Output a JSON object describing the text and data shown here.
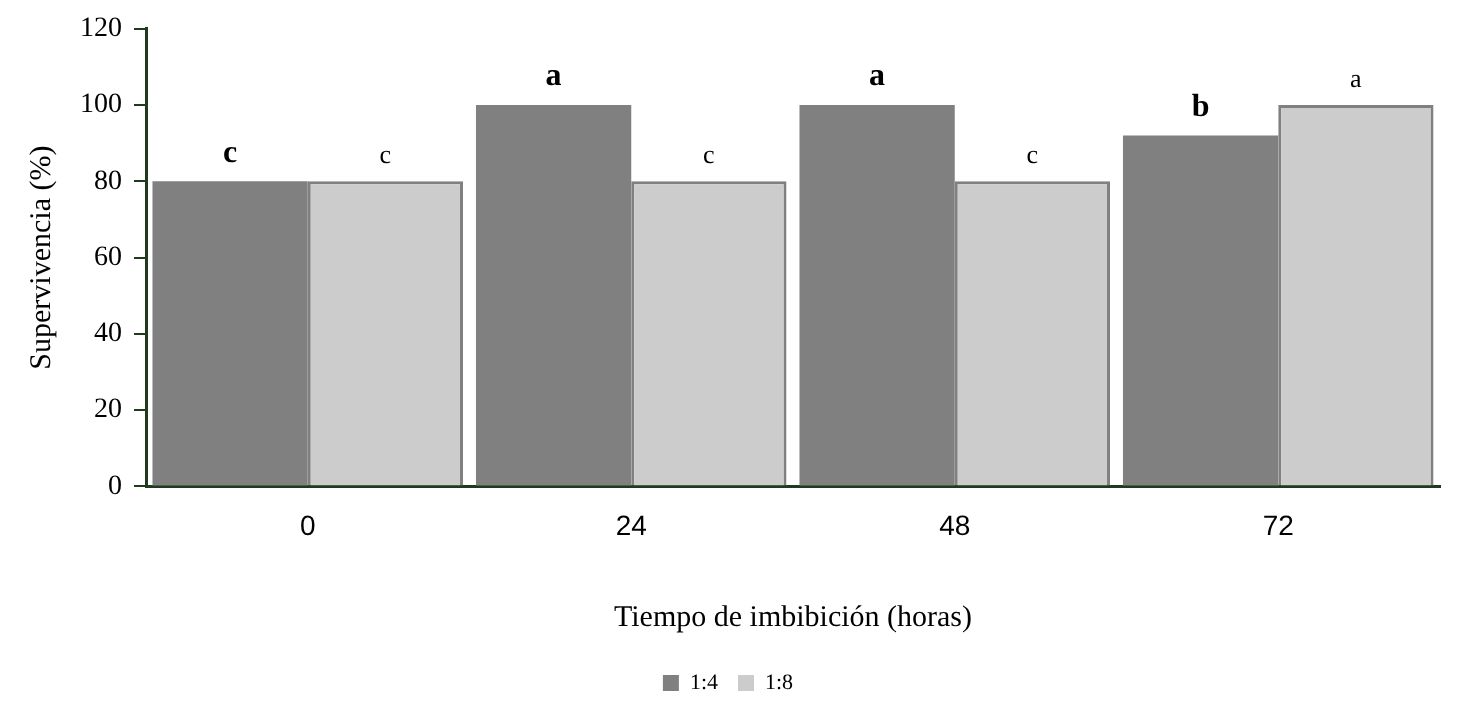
{
  "chart_data": {
    "type": "bar",
    "xlabel": "Tiempo de imbibición (horas)",
    "ylabel": "Supervivencia (%)",
    "categories": [
      "0",
      "24",
      "48",
      "72"
    ],
    "series": [
      {
        "name": "1:4",
        "color": "#808080",
        "values": [
          80,
          100,
          100,
          92
        ],
        "value_labels": [
          "c",
          "a",
          "a",
          "b"
        ]
      },
      {
        "name": "1:8",
        "color": "#cccccc",
        "values": [
          80,
          80,
          80,
          100
        ],
        "value_labels": [
          "c",
          "c",
          "c",
          "a"
        ]
      }
    ],
    "ylim": [
      0,
      120
    ],
    "yticks": [
      0,
      20,
      40,
      60,
      80,
      100,
      120
    ],
    "grid": false,
    "legend": "bottom"
  }
}
